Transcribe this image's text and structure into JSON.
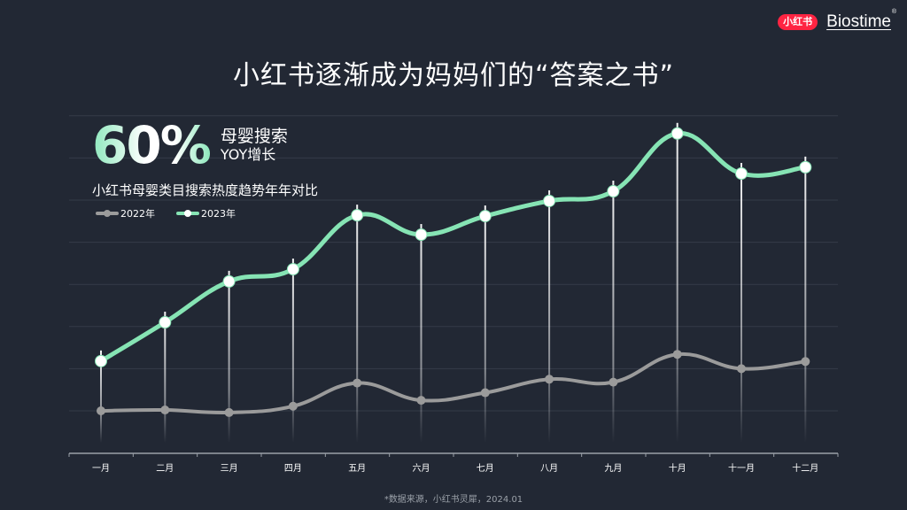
{
  "header": {
    "xhs_logo": "小红书",
    "brand_logo": "Biostime",
    "brand_mark": "®"
  },
  "title": "小红书逐渐成为妈妈们的“答案之书”",
  "kpi": {
    "value": "60%",
    "label1": "母婴搜索",
    "label2": "YOY增长"
  },
  "subtitle": "小红书母婴类目搜索热度趋势年年对比",
  "legend": [
    {
      "label": "2022年",
      "color": "#9b9b9b"
    },
    {
      "label": "2023年",
      "color": "#86e4b4"
    }
  ],
  "source": "*数据来源，小红书灵犀，2024.01",
  "colors": {
    "background": "#222834",
    "series_2022": "#9b9b9b",
    "series_2023": "#86e4b4",
    "gridline": "#343b48",
    "axis": "#9aa0a8"
  },
  "chart_data": {
    "type": "line",
    "title": "小红书母婴类目搜索热度趋势年年对比",
    "xlabel": "",
    "ylabel": "",
    "categories": [
      "一月",
      "二月",
      "三月",
      "四月",
      "五月",
      "六月",
      "七月",
      "八月",
      "九月",
      "十月",
      "十一月",
      "十二月"
    ],
    "series": [
      {
        "name": "2022年",
        "values": [
          1.0,
          1.02,
          0.96,
          1.11,
          1.66,
          1.25,
          1.43,
          1.75,
          1.68,
          2.34,
          2.0,
          2.17
        ]
      },
      {
        "name": "2023年",
        "values": [
          2.18,
          3.1,
          4.07,
          4.36,
          5.64,
          5.18,
          5.62,
          5.98,
          6.21,
          7.58,
          6.63,
          6.78
        ]
      }
    ],
    "ylim": [
      0,
      8
    ],
    "y_ticks_visible": false,
    "grid": true,
    "smooth": true,
    "legend_position": "top-left",
    "annotation": "60% 母婴搜索 YOY增长",
    "source": "*数据来源，小红书灵犀，2024.01"
  }
}
